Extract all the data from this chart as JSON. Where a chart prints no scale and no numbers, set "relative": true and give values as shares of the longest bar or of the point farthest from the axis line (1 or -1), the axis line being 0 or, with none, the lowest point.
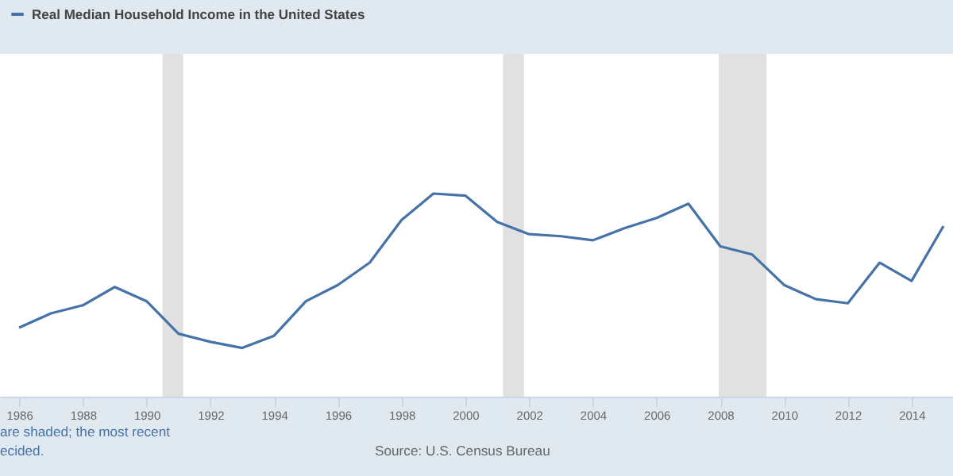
{
  "chart_data": {
    "type": "line",
    "relative": true,
    "x": [
      1986,
      1987,
      1988,
      1989,
      1990,
      1991,
      1992,
      1993,
      1994,
      1995,
      1996,
      1997,
      1998,
      1999,
      2000,
      2001,
      2002,
      2003,
      2004,
      2005,
      2006,
      2007,
      2008,
      2009,
      2010,
      2011,
      2012,
      2013,
      2014,
      2015
    ],
    "series": [
      {
        "name": "Real Median Household Income in the United States",
        "color": "#4572a7",
        "values": [
          0.34,
          0.41,
          0.45,
          0.54,
          0.47,
          0.31,
          0.27,
          0.24,
          0.3,
          0.47,
          0.55,
          0.66,
          0.87,
          1,
          0.99,
          0.86,
          0.8,
          0.79,
          0.77,
          0.83,
          0.88,
          0.95,
          0.74,
          0.7,
          0.55,
          0.48,
          0.46,
          0.66,
          0.57,
          0.84
        ]
      }
    ],
    "xlim": [
      1985.4,
      2015.3
    ],
    "xticks": [
      1986,
      1988,
      1990,
      1992,
      1994,
      1996,
      1998,
      2000,
      2002,
      2004,
      2006,
      2008,
      2010,
      2012,
      2014
    ],
    "bands": [
      {
        "axis": "x",
        "from": 1990.5,
        "to": 1991.15,
        "color": "#e1e1e1"
      },
      {
        "axis": "x",
        "from": 2001.18,
        "to": 2001.84,
        "color": "#e1e1e1"
      },
      {
        "axis": "x",
        "from": 2007.95,
        "to": 2009.45,
        "color": "#e1e1e1"
      }
    ],
    "legend": "top left",
    "marker": "none",
    "line_style": "solid",
    "annotations": [
      "are shaded; the most recent",
      "ecided.",
      "Source: U.S. Census Bureau"
    ]
  }
}
